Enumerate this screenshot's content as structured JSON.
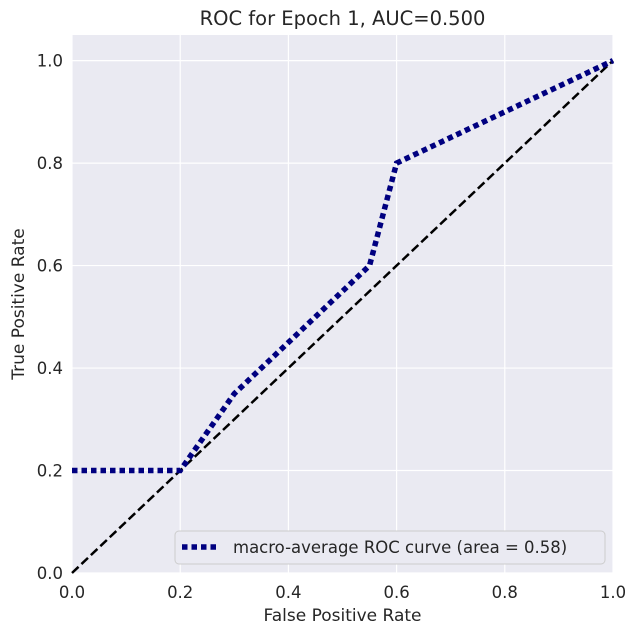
{
  "chart_data": {
    "type": "line",
    "title": "ROC for Epoch 1,  AUC=0.500",
    "xlabel": "False Positive Rate",
    "ylabel": "True Positive Rate",
    "xlim": [
      0.0,
      1.0
    ],
    "ylim": [
      0.0,
      1.05
    ],
    "xticks": [
      "0.0",
      "0.2",
      "0.4",
      "0.6",
      "0.8",
      "1.0"
    ],
    "yticks": [
      "0.0",
      "0.2",
      "0.4",
      "0.6",
      "0.8",
      "1.0"
    ],
    "grid": true,
    "legend_position": "lower-right",
    "series": [
      {
        "name": "macro-average ROC curve (area = 0.58)",
        "color": "#000080",
        "style": "dotted",
        "x": [
          0.0,
          0.2,
          0.3,
          0.5,
          0.55,
          0.6,
          1.0
        ],
        "y": [
          0.2,
          0.2,
          0.35,
          0.55,
          0.6,
          0.8,
          1.0
        ]
      },
      {
        "color": "#000000",
        "style": "dashed",
        "x": [
          0.0,
          1.0
        ],
        "y": [
          0.0,
          1.0
        ]
      }
    ]
  }
}
